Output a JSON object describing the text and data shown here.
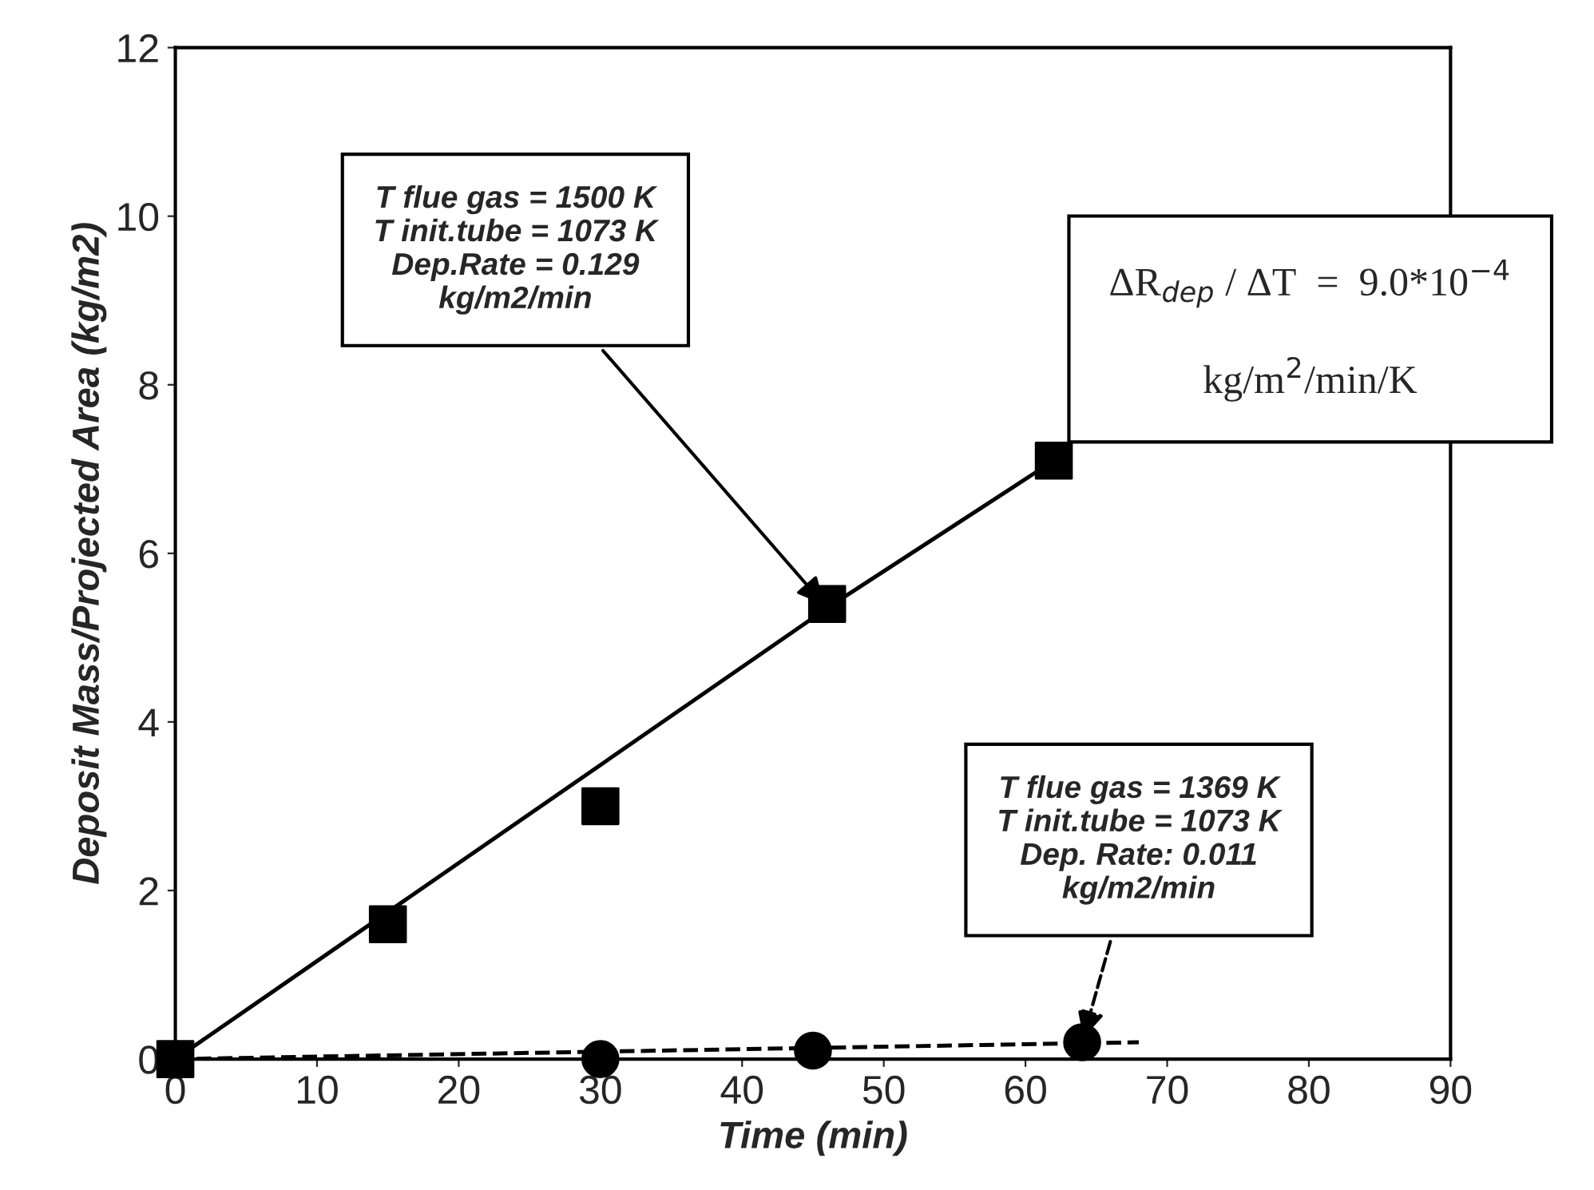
{
  "chart_data": {
    "type": "scatter",
    "xlabel": "Time (min)",
    "ylabel": "Deposit Mass/Projected Area (kg/m2)",
    "xlim": [
      0,
      90
    ],
    "xticks": [
      0,
      10,
      20,
      30,
      40,
      50,
      60,
      70,
      80,
      90
    ],
    "ylim": [
      0,
      12
    ],
    "yticks": [
      0,
      2,
      4,
      6,
      8,
      10,
      12
    ],
    "grid": false,
    "legend": false,
    "series": [
      {
        "type": "line",
        "color": "#000000",
        "line_style": "solid",
        "marker": "none",
        "x": [
          0,
          46,
          62
        ],
        "values": [
          0,
          5.35,
          7.1
        ]
      },
      {
        "color": "#000000",
        "marker": "square",
        "x": [
          0,
          15,
          30,
          46,
          62
        ],
        "values": [
          0,
          1.6,
          3.0,
          5.4,
          7.1
        ]
      },
      {
        "type": "line",
        "color": "#000000",
        "line_style": "dashed",
        "marker": "none",
        "x": [
          0,
          68
        ],
        "values": [
          0,
          0.2
        ]
      },
      {
        "color": "#000000",
        "marker": "circle",
        "x": [
          30,
          45,
          64
        ],
        "values": [
          0,
          0.1,
          0.2
        ]
      }
    ],
    "annotations": [
      {
        "text": "T flue gas = 1500 K\nT init.tube = 1073 K\nDep.Rate = 0.129\nkg/m2/min",
        "x": 46,
        "y": 5.35
      },
      {
        "text": "T flue gas = 1369 K\nT init.tube = 1073 K\nDep. Rate: 0.011\nkg/m2/min",
        "x": 64,
        "y": 0.2
      },
      "ΔR$_{dep}$ / ΔT  =  9.0*10$^{−4}$\n\nkg/m$^{2}$/min/K"
    ]
  }
}
